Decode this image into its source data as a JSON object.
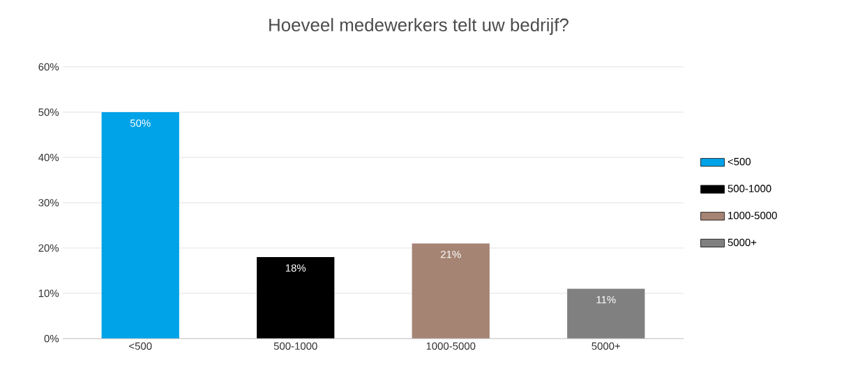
{
  "chart_data": {
    "type": "bar",
    "title": "Hoeveel medewerkers telt uw bedrijf?",
    "categories": [
      "<500",
      "500-1000",
      "1000-5000",
      "5000+"
    ],
    "series": [
      {
        "name": "<500",
        "color": "#00a2e8",
        "values": [
          50,
          null,
          null,
          null
        ],
        "value_labels": [
          "50%",
          null,
          null,
          null
        ]
      },
      {
        "name": "500-1000",
        "color": "#000000",
        "values": [
          null,
          18,
          null,
          null
        ],
        "value_labels": [
          null,
          "18%",
          null,
          null
        ]
      },
      {
        "name": "1000-5000",
        "color": "#a58474",
        "values": [
          null,
          null,
          21,
          null
        ],
        "value_labels": [
          null,
          null,
          "21%",
          null
        ]
      },
      {
        "name": "5000+",
        "color": "#808080",
        "values": [
          null,
          null,
          null,
          11
        ],
        "value_labels": [
          null,
          null,
          null,
          "11%"
        ]
      }
    ],
    "ylim": [
      0,
      60
    ],
    "yticks": [
      {
        "value": 0,
        "label": "0%"
      },
      {
        "value": 10,
        "label": "10%"
      },
      {
        "value": 20,
        "label": "20%"
      },
      {
        "value": 30,
        "label": "30%"
      },
      {
        "value": 40,
        "label": "40%"
      },
      {
        "value": 50,
        "label": "50%"
      },
      {
        "value": 60,
        "label": "60%"
      }
    ],
    "grid": "y",
    "legend": "right"
  }
}
